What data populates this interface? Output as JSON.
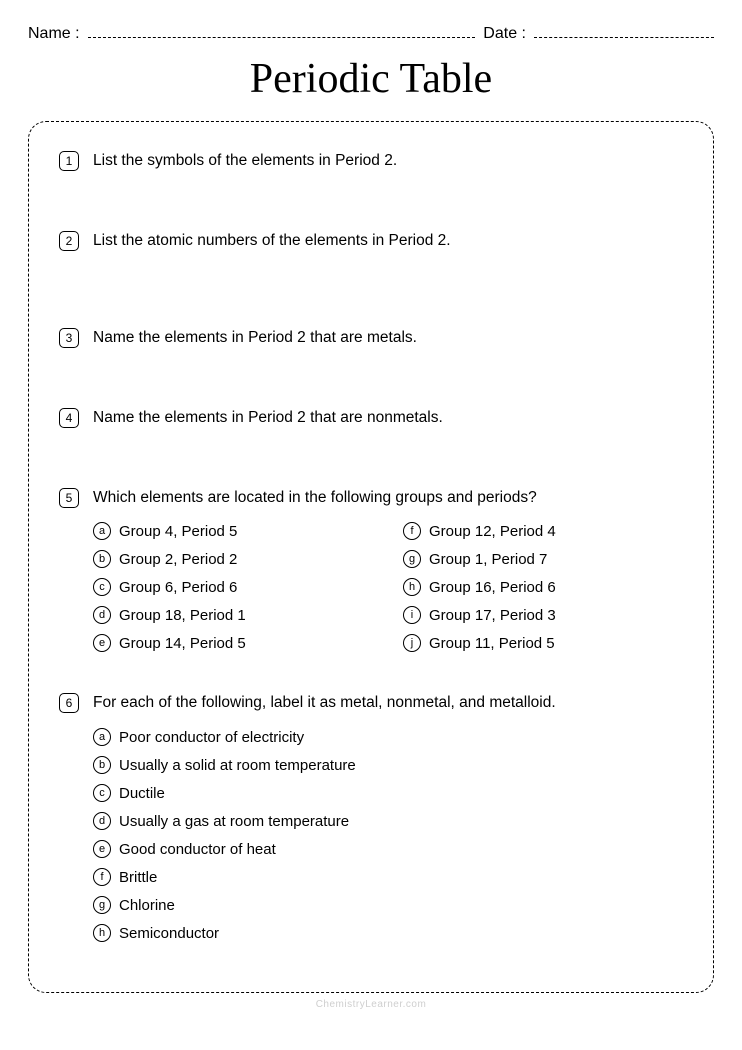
{
  "header": {
    "name_label": "Name :",
    "date_label": "Date :"
  },
  "title": "Periodic Table",
  "questions": [
    {
      "num": "1",
      "text": "List the symbols of the elements in Period 2.",
      "gap": "lg"
    },
    {
      "num": "2",
      "text": "List the atomic numbers of the elements in Period 2.",
      "gap": "xl"
    },
    {
      "num": "3",
      "text": "Name the elements in Period 2 that are metals.",
      "gap": "lg"
    },
    {
      "num": "4",
      "text": "Name the elements in Period 2 that are nonmetals.",
      "gap": "lg"
    },
    {
      "num": "5",
      "text": "Which elements are located in the following groups and periods?",
      "two_col": true,
      "subs": [
        {
          "l": "a",
          "t": "Group 4, Period 5"
        },
        {
          "l": "b",
          "t": "Group 2, Period 2"
        },
        {
          "l": "c",
          "t": "Group 6, Period 6"
        },
        {
          "l": "d",
          "t": "Group 18, Period 1"
        },
        {
          "l": "e",
          "t": "Group 14, Period 5"
        },
        {
          "l": "f",
          "t": "Group 12, Period 4"
        },
        {
          "l": "g",
          "t": "Group 1, Period 7"
        },
        {
          "l": "h",
          "t": "Group 16, Period 6"
        },
        {
          "l": "i",
          "t": "Group 17, Period 3"
        },
        {
          "l": "j",
          "t": "Group 11, Period 5"
        }
      ]
    },
    {
      "num": "6",
      "text": "For each of the following, label it as metal, nonmetal, and metalloid.",
      "two_col": false,
      "subs": [
        {
          "l": "a",
          "t": "Poor conductor of electricity"
        },
        {
          "l": "b",
          "t": "Usually a solid at room temperature"
        },
        {
          "l": "c",
          "t": "Ductile"
        },
        {
          "l": "d",
          "t": "Usually a gas at room temperature"
        },
        {
          "l": "e",
          "t": "Good conductor of heat"
        },
        {
          "l": "f",
          "t": "Brittle"
        },
        {
          "l": "g",
          "t": "Chlorine"
        },
        {
          "l": "h",
          "t": "Semiconductor"
        }
      ]
    }
  ],
  "footer": "ChemistryLearner.com"
}
